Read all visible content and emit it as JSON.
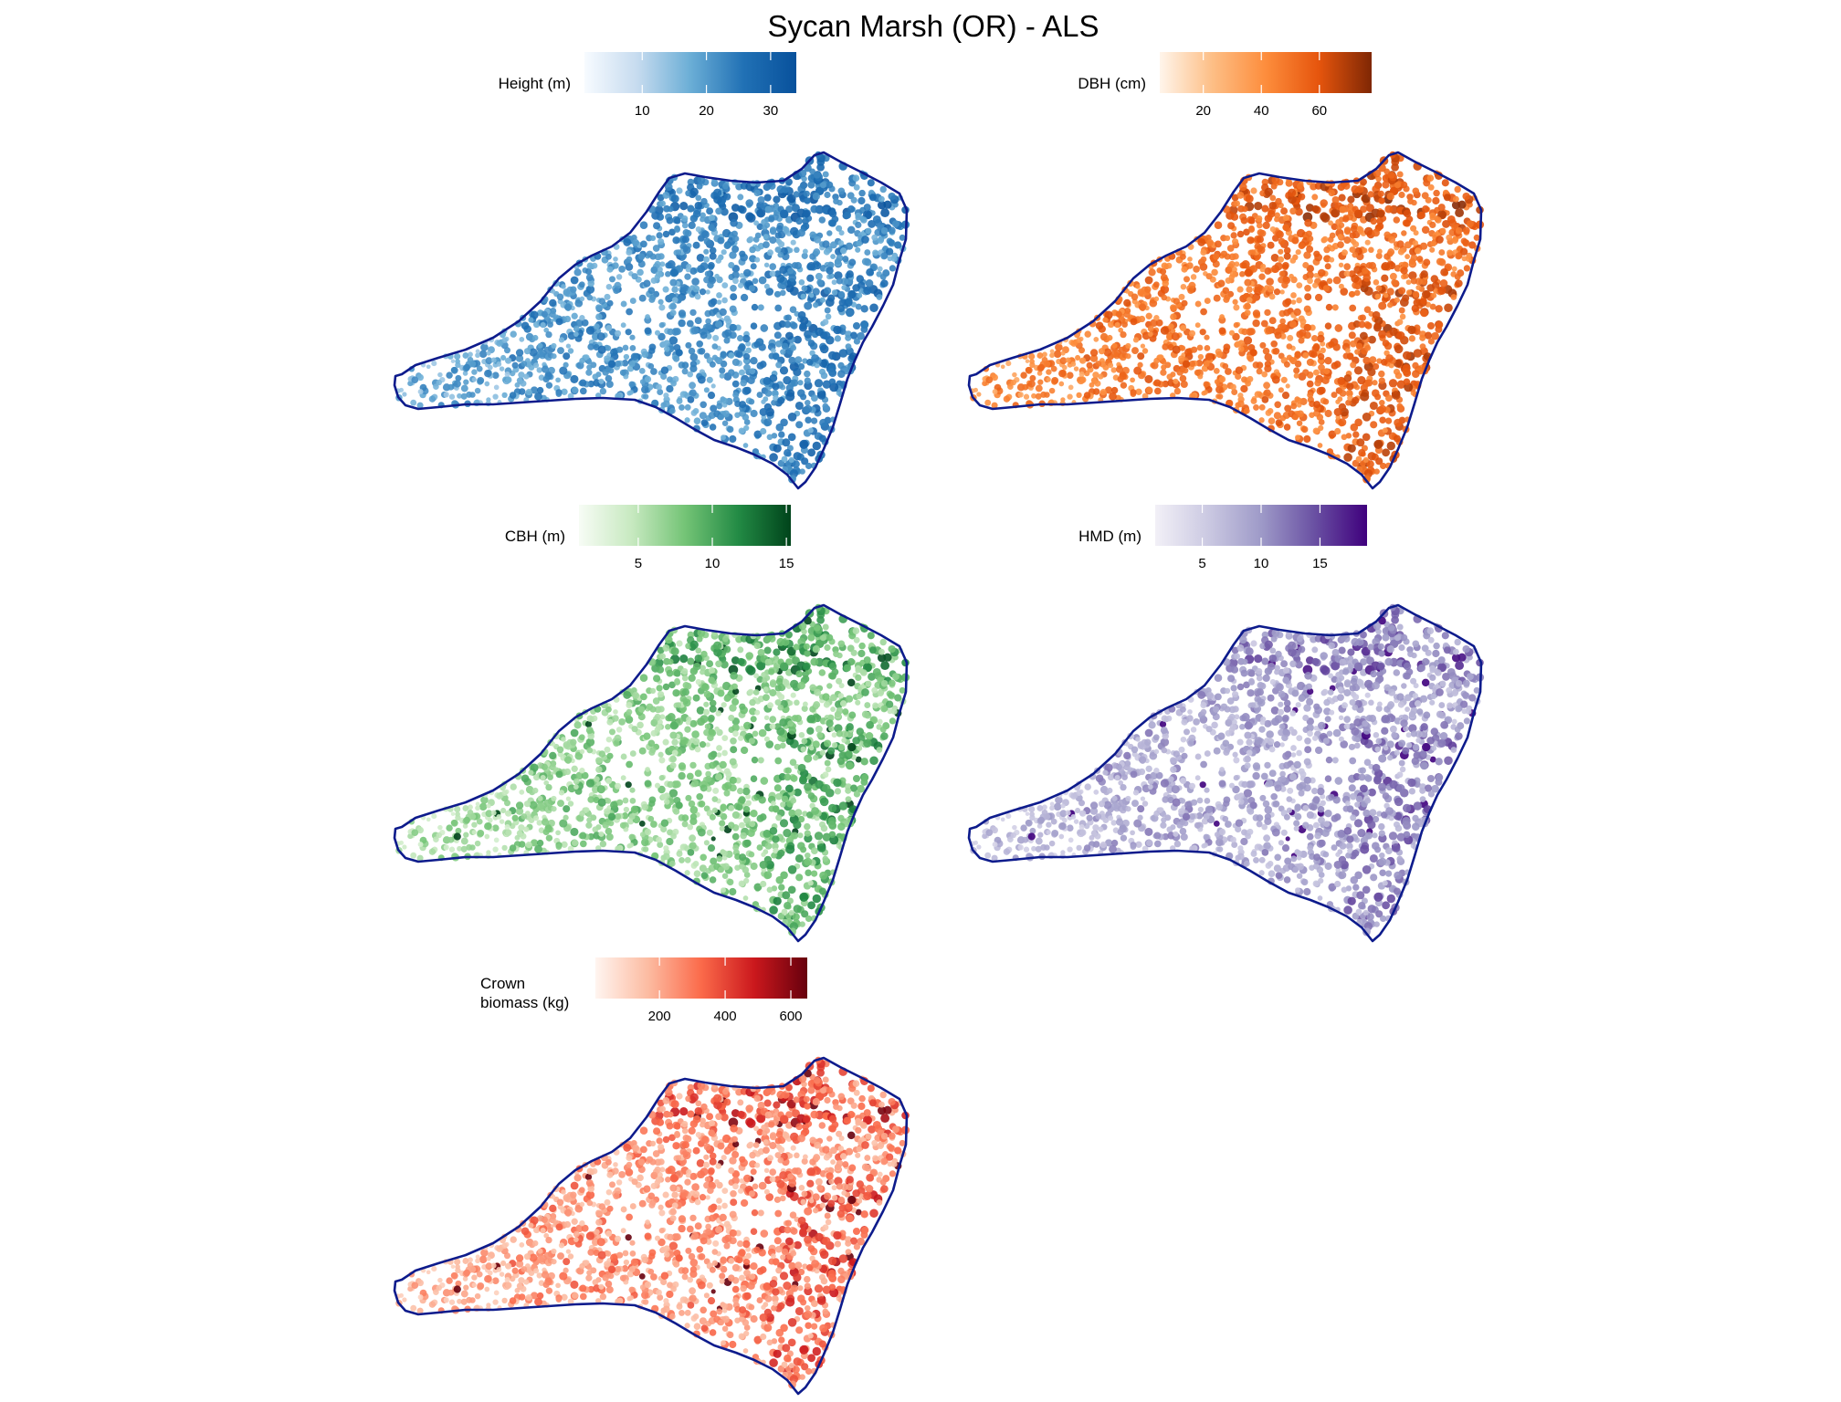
{
  "title": "Sycan Marsh (OR) - ALS",
  "boundary_color": "#0d1b8c",
  "chart_data": [
    {
      "type": "scatter",
      "map": "tree-map",
      "legend": {
        "label": "Height (m)",
        "title_lines": [
          "Height (m)"
        ],
        "ticks": [
          10,
          20,
          30
        ],
        "range": [
          1,
          34
        ],
        "colors": [
          "#f7fbff",
          "#c6dbef",
          "#6baed6",
          "#2171b5",
          "#08519c"
        ]
      },
      "series": [
        {
          "name": "Height (m)",
          "points": []
        }
      ]
    },
    {
      "type": "scatter",
      "map": "tree-map",
      "legend": {
        "label": "DBH (cm)",
        "title_lines": [
          "DBH (cm)"
        ],
        "ticks": [
          20,
          40,
          60
        ],
        "range": [
          5,
          78
        ],
        "colors": [
          "#fff5eb",
          "#fdbe85",
          "#fd8d3c",
          "#e6550d",
          "#7f2704"
        ]
      },
      "series": [
        {
          "name": "DBH (cm)",
          "points": []
        }
      ]
    },
    {
      "type": "scatter",
      "map": "tree-map",
      "legend": {
        "label": "CBH (m)",
        "title_lines": [
          "CBH (m)"
        ],
        "ticks": [
          5,
          10,
          15
        ],
        "range": [
          1,
          15.3
        ],
        "colors": [
          "#f7fcf5",
          "#c7e9c0",
          "#74c476",
          "#238b45",
          "#00441b"
        ]
      },
      "series": [
        {
          "name": "CBH (m)",
          "points": []
        }
      ]
    },
    {
      "type": "scatter",
      "map": "tree-map",
      "legend": {
        "label": "HMD (m)",
        "title_lines": [
          "HMD (m)"
        ],
        "ticks": [
          5,
          10,
          15
        ],
        "range": [
          1,
          19
        ],
        "colors": [
          "#f2f0f7",
          "#cbc9e2",
          "#9e9ac8",
          "#6a51a3",
          "#3f007d"
        ]
      },
      "series": [
        {
          "name": "HMD (m)",
          "points": []
        }
      ]
    },
    {
      "type": "scatter",
      "map": "tree-map",
      "legend": {
        "label": "Crown biomass (kg)",
        "title_lines": [
          "Crown",
          "biomass (kg)"
        ],
        "ticks": [
          200,
          400,
          600
        ],
        "range": [
          5,
          650
        ],
        "colors": [
          "#fff5f0",
          "#fcbba1",
          "#fb6a4a",
          "#cb181d",
          "#67000d"
        ]
      },
      "series": [
        {
          "name": "Crown biomass (kg)",
          "points": []
        }
      ]
    }
  ]
}
